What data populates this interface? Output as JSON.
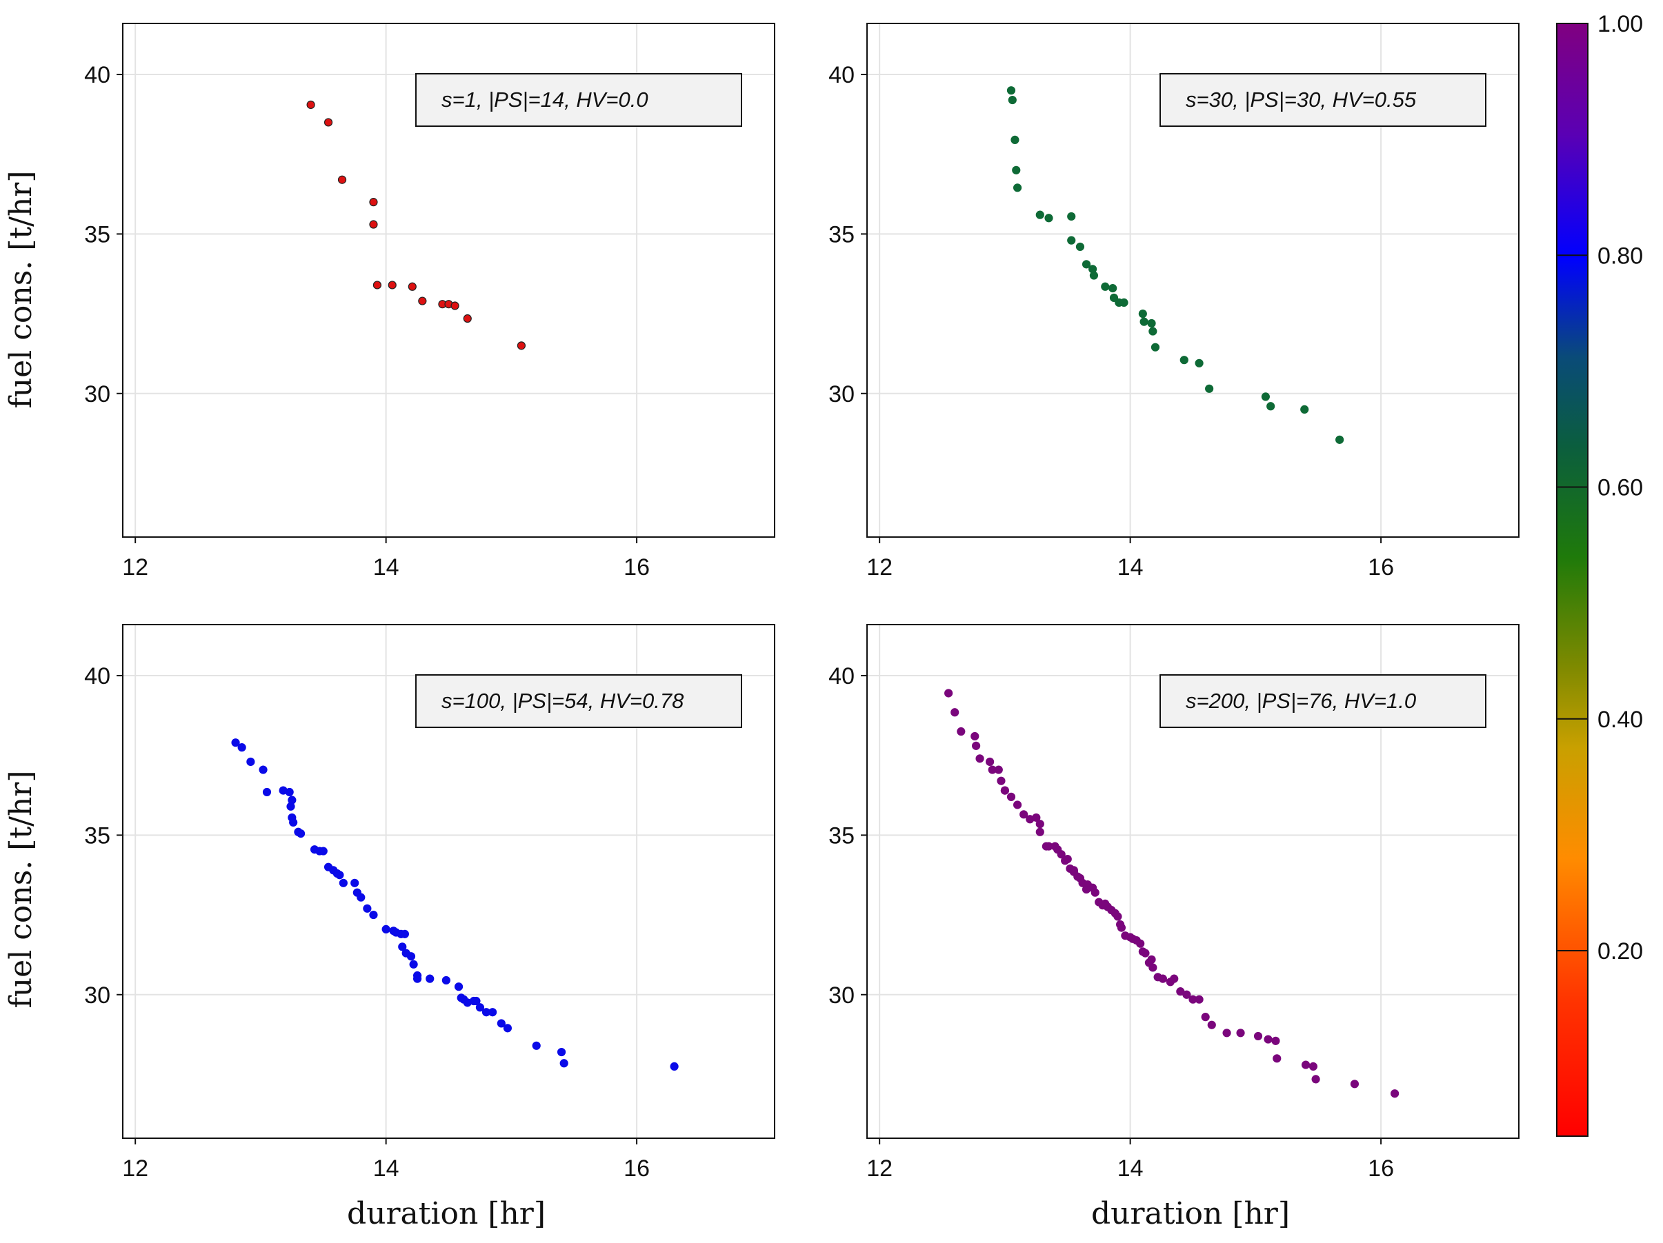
{
  "chart_data": {
    "type": "scatter",
    "shared_axes": {
      "xlabel": "duration [hr]",
      "ylabel": "fuel cons. [t/hr]",
      "xlim": [
        11.9,
        17.1
      ],
      "ylim": [
        25.5,
        41.6
      ],
      "xticks": [
        12,
        14,
        16
      ],
      "yticks": [
        30,
        35,
        40
      ],
      "grid": true
    },
    "colorbar": {
      "range": [
        0.04,
        1.0
      ],
      "ticks": [
        0.2,
        0.4,
        0.6,
        0.8,
        1.0
      ],
      "tick_labels": [
        "0.20",
        "0.40",
        "0.60",
        "0.80",
        "1.00"
      ],
      "colormap": "rainbow (red to purple)"
    },
    "panels": [
      {
        "name": "s1",
        "legend": "s=1, |PS|=14, HV=0.0",
        "color": "#dd1111",
        "stroke": "#222222",
        "x": [
          13.4,
          13.54,
          13.65,
          13.9,
          13.9,
          13.93,
          14.05,
          14.21,
          14.29,
          14.45,
          14.5,
          14.55,
          14.65,
          15.08
        ],
        "y": [
          39.05,
          38.5,
          36.7,
          36.0,
          35.3,
          33.4,
          33.4,
          33.35,
          32.9,
          32.8,
          32.8,
          32.75,
          32.35,
          31.5
        ]
      },
      {
        "name": "s30",
        "legend": "s=30, |PS|=30, HV=0.55",
        "color": "#0e6a36",
        "stroke": "#0e6a36",
        "x": [
          13.05,
          13.06,
          13.08,
          13.09,
          13.1,
          13.28,
          13.35,
          13.53,
          13.53,
          13.6,
          13.65,
          13.7,
          13.71,
          13.8,
          13.86,
          13.87,
          13.91,
          13.95,
          14.1,
          14.11,
          14.17,
          14.18,
          14.2,
          14.43,
          14.55,
          14.63,
          15.08,
          15.12,
          15.39,
          15.67
        ],
        "y": [
          39.5,
          39.2,
          37.95,
          37.0,
          36.45,
          35.6,
          35.5,
          35.55,
          34.8,
          34.6,
          34.05,
          33.9,
          33.7,
          33.35,
          33.3,
          33.0,
          32.85,
          32.85,
          32.5,
          32.25,
          32.2,
          31.95,
          31.45,
          31.05,
          30.95,
          30.15,
          29.9,
          29.6,
          29.5,
          28.55
        ]
      },
      {
        "name": "s100",
        "legend": "s=100, |PS|=54, HV=0.78",
        "color": "#0a0ae8",
        "stroke": "#0a0ae8",
        "x": [
          12.8,
          12.85,
          12.92,
          13.02,
          13.05,
          13.18,
          13.23,
          13.25,
          13.24,
          13.25,
          13.26,
          13.3,
          13.32,
          13.43,
          13.47,
          13.5,
          13.54,
          13.58,
          13.61,
          13.63,
          13.66,
          13.75,
          13.77,
          13.8,
          13.85,
          13.9,
          14.0,
          14.06,
          14.08,
          14.12,
          14.15,
          14.13,
          14.16,
          14.2,
          14.22,
          14.25,
          14.25,
          14.35,
          14.48,
          14.58,
          14.6,
          14.62,
          14.65,
          14.72,
          14.75,
          14.8,
          14.85,
          14.92,
          14.97,
          15.2,
          15.4,
          15.42,
          16.3,
          14.7
        ],
        "y": [
          37.9,
          37.75,
          37.3,
          37.05,
          36.35,
          36.4,
          36.35,
          36.1,
          35.9,
          35.55,
          35.4,
          35.1,
          35.05,
          34.55,
          34.5,
          34.5,
          34.0,
          33.9,
          33.8,
          33.75,
          33.5,
          33.5,
          33.2,
          33.05,
          32.7,
          32.5,
          32.05,
          32.0,
          31.95,
          31.9,
          31.9,
          31.5,
          31.3,
          31.2,
          30.95,
          30.6,
          30.5,
          30.5,
          30.45,
          30.25,
          29.9,
          29.85,
          29.75,
          29.8,
          29.6,
          29.45,
          29.45,
          29.1,
          28.95,
          28.4,
          28.2,
          27.85,
          27.75,
          29.8
        ]
      },
      {
        "name": "s200",
        "legend": "s=200, |PS|=76, HV=1.0",
        "color": "#7a067c",
        "stroke": "#7a067c",
        "x": [
          12.55,
          12.6,
          12.65,
          12.76,
          12.77,
          12.8,
          12.88,
          12.95,
          12.97,
          13.0,
          13.05,
          13.1,
          13.15,
          13.2,
          13.25,
          13.28,
          13.33,
          13.4,
          13.42,
          13.45,
          13.5,
          13.52,
          13.55,
          13.58,
          13.6,
          13.62,
          13.66,
          13.7,
          13.72,
          13.75,
          13.78,
          13.82,
          13.85,
          13.88,
          13.9,
          13.93,
          13.96,
          14.0,
          14.05,
          14.08,
          14.1,
          14.12,
          14.15,
          14.18,
          14.22,
          14.26,
          14.32,
          14.4,
          14.45,
          14.5,
          14.55,
          14.6,
          14.65,
          14.77,
          14.88,
          15.02,
          15.1,
          15.16,
          15.17,
          15.4,
          15.46,
          15.48,
          15.79,
          16.11,
          12.9,
          13.0,
          13.28,
          13.35,
          13.48,
          13.55,
          13.65,
          13.8,
          13.92,
          14.02,
          14.17,
          14.35
        ],
        "y": [
          39.45,
          38.85,
          38.25,
          38.1,
          37.8,
          37.4,
          37.3,
          37.05,
          36.7,
          36.4,
          36.2,
          35.95,
          35.65,
          35.5,
          35.55,
          35.35,
          34.65,
          34.65,
          34.55,
          34.4,
          34.25,
          33.95,
          33.85,
          33.7,
          33.65,
          33.5,
          33.45,
          33.35,
          33.2,
          32.9,
          32.8,
          32.75,
          32.65,
          32.55,
          32.45,
          32.1,
          31.85,
          31.8,
          31.7,
          31.6,
          31.35,
          31.3,
          31.0,
          30.85,
          30.55,
          30.5,
          30.4,
          30.1,
          30.0,
          29.85,
          29.85,
          29.3,
          29.05,
          28.8,
          28.8,
          28.7,
          28.6,
          28.55,
          28.0,
          27.8,
          27.75,
          27.35,
          27.2,
          26.9,
          37.05,
          36.4,
          35.1,
          34.65,
          34.2,
          33.9,
          33.3,
          32.85,
          32.2,
          31.75,
          31.1,
          30.5
        ]
      }
    ]
  }
}
